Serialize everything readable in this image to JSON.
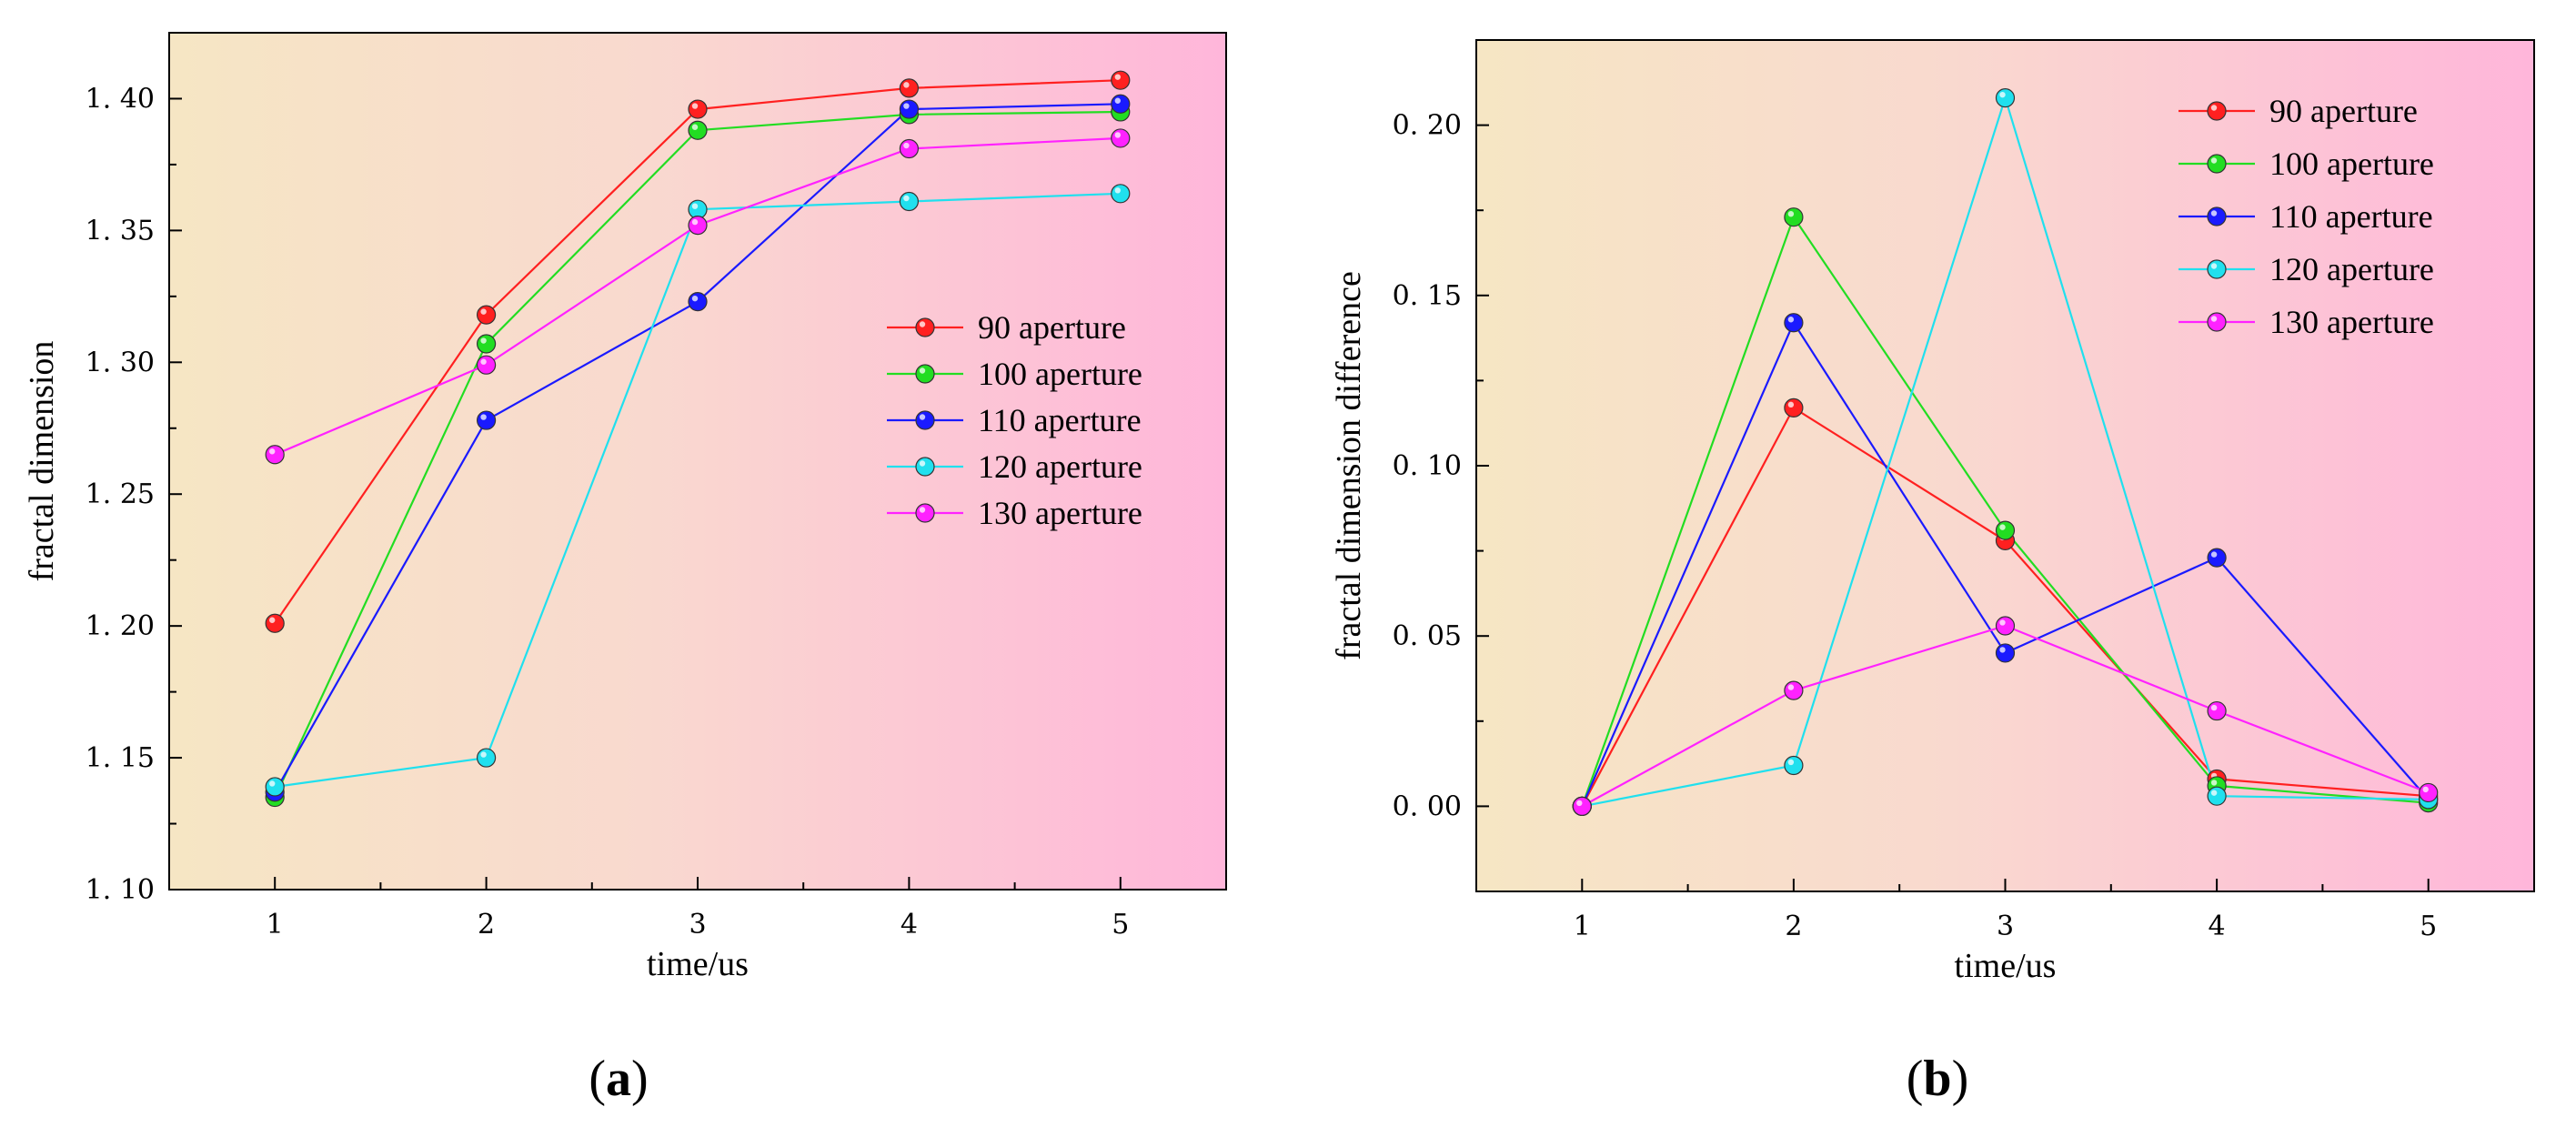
{
  "chart_data": [
    {
      "type": "line",
      "panel": "a",
      "xlabel": "time/us",
      "ylabel": "fractal dimension",
      "x": [
        1,
        2,
        3,
        4,
        5
      ],
      "xlim": [
        0.5,
        5.5
      ],
      "ylim": [
        1.1,
        1.425
      ],
      "yticks": [
        1.1,
        1.15,
        1.2,
        1.25,
        1.3,
        1.35,
        1.4
      ],
      "ytick_labels": [
        "1. 10",
        "1. 15",
        "1. 20",
        "1. 25",
        "1. 30",
        "1. 35",
        "1. 40"
      ],
      "xtick_labels": [
        "1",
        "2",
        "3",
        "4",
        "5"
      ],
      "legend_position": "center-right",
      "series": [
        {
          "name": "90 aperture",
          "color": "#ff2020",
          "values": [
            1.201,
            1.318,
            1.396,
            1.404,
            1.407
          ]
        },
        {
          "name": "100 aperture",
          "color": "#22dd22",
          "values": [
            1.135,
            1.307,
            1.388,
            1.394,
            1.395
          ]
        },
        {
          "name": "110 aperture",
          "color": "#1a1aff",
          "values": [
            1.137,
            1.278,
            1.323,
            1.396,
            1.398
          ]
        },
        {
          "name": "120 aperture",
          "color": "#20e0ee",
          "values": [
            1.139,
            1.15,
            1.358,
            1.361,
            1.364
          ]
        },
        {
          "name": "130 aperture",
          "color": "#ff22ff",
          "values": [
            1.265,
            1.299,
            1.352,
            1.381,
            1.385
          ]
        }
      ]
    },
    {
      "type": "line",
      "panel": "b",
      "xlabel": "time/us",
      "ylabel": "fractal dimension difference",
      "x": [
        1,
        2,
        3,
        4,
        5
      ],
      "xlim": [
        0.5,
        5.5
      ],
      "ylim": [
        -0.025,
        0.225
      ],
      "yticks": [
        0.0,
        0.05,
        0.1,
        0.15,
        0.2
      ],
      "ytick_labels": [
        "0. 00",
        "0. 05",
        "0. 10",
        "0. 15",
        "0. 20"
      ],
      "xtick_labels": [
        "1",
        "2",
        "3",
        "4",
        "5"
      ],
      "legend_position": "top-right",
      "series": [
        {
          "name": "90 aperture",
          "color": "#ff2020",
          "values": [
            0.0,
            0.117,
            0.078,
            0.008,
            0.003
          ]
        },
        {
          "name": "100 aperture",
          "color": "#22dd22",
          "values": [
            0.0,
            0.173,
            0.081,
            0.006,
            0.001
          ]
        },
        {
          "name": "110 aperture",
          "color": "#1a1aff",
          "values": [
            0.0,
            0.142,
            0.045,
            0.073,
            0.002
          ]
        },
        {
          "name": "120 aperture",
          "color": "#20e0ee",
          "values": [
            0.0,
            0.012,
            0.208,
            0.003,
            0.002
          ]
        },
        {
          "name": "130 aperture",
          "color": "#ff22ff",
          "values": [
            0.0,
            0.034,
            0.053,
            0.028,
            0.004
          ]
        }
      ]
    }
  ],
  "panels": {
    "a": {
      "open": "(",
      "letter": "a",
      "close": ")"
    },
    "b": {
      "open": "(",
      "letter": "b",
      "close": ")"
    }
  }
}
